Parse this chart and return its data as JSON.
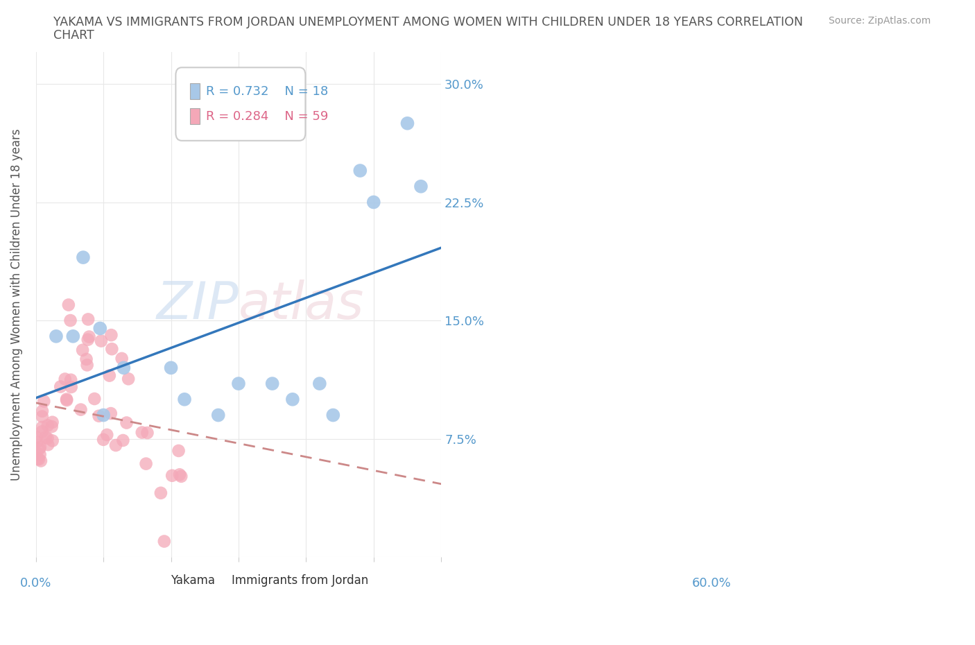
{
  "title_line1": "YAKAMA VS IMMIGRANTS FROM JORDAN UNEMPLOYMENT AMONG WOMEN WITH CHILDREN UNDER 18 YEARS CORRELATION",
  "title_line2": "CHART",
  "source": "Source: ZipAtlas.com",
  "ylabel": "Unemployment Among Women with Children Under 18 years",
  "xlim": [
    0.0,
    0.6
  ],
  "ylim": [
    0.0,
    0.32
  ],
  "yticks": [
    0.0,
    0.075,
    0.15,
    0.225,
    0.3
  ],
  "ytick_labels": [
    "",
    "7.5%",
    "15.0%",
    "22.5%",
    "30.0%"
  ],
  "yakama_color": "#a8c8e8",
  "jordan_color": "#f4a8b8",
  "yakama_line_color": "#3377bb",
  "jordan_line_color": "#cc8888",
  "legend_r_yakama": "R = 0.732",
  "legend_n_yakama": "N = 18",
  "legend_r_jordan": "R = 0.284",
  "legend_n_jordan": "N = 59",
  "legend_label_yakama": "Yakama",
  "legend_label_jordan": "Immigrants from Jordan",
  "watermark_zip": "ZIP",
  "watermark_atlas": "atlas",
  "background_color": "#ffffff",
  "grid_color": "#e8e8e8",
  "axis_label_color": "#5599cc",
  "title_color": "#555555",
  "yakama_x": [
    0.03,
    0.055,
    0.07,
    0.095,
    0.1,
    0.13,
    0.2,
    0.22,
    0.27,
    0.3,
    0.35,
    0.38,
    0.42,
    0.44,
    0.48,
    0.5,
    0.55,
    0.57
  ],
  "yakama_y": [
    0.14,
    0.14,
    0.19,
    0.145,
    0.09,
    0.12,
    0.12,
    0.1,
    0.09,
    0.11,
    0.11,
    0.1,
    0.11,
    0.09,
    0.245,
    0.225,
    0.275,
    0.235
  ]
}
